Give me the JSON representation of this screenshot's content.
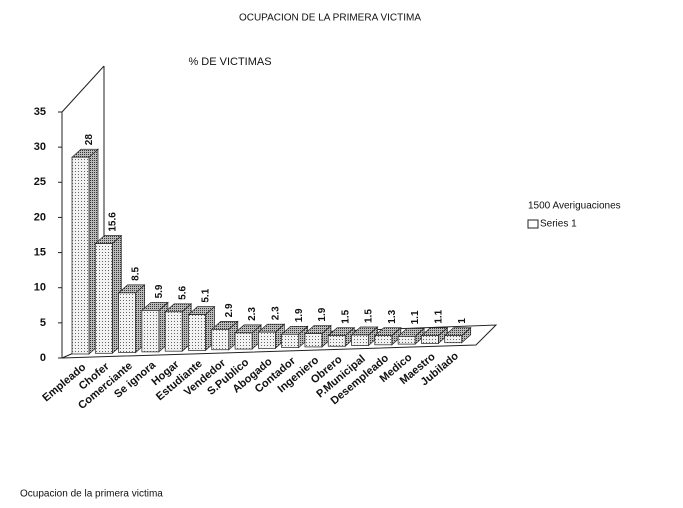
{
  "chart_data": {
    "type": "bar3d",
    "title": "OCUPACION DE LA PRIMERA VICTIMA",
    "subtitle": "% DE VICTIMAS",
    "legend_title": "1500 Averiguaciones",
    "footer": "Ocupacion de la primera victima",
    "categories": [
      "Empleado",
      "Chofer",
      "Comerciante",
      "Se ignora",
      "Hogar",
      "Estudiante",
      "Vendedor",
      "S.Publico",
      "Abogado",
      "Contador",
      "Ingeniero",
      "Obrero",
      "P.Municipal",
      "Desempleado",
      "Medico",
      "Maestro",
      "Jubilado"
    ],
    "series": [
      {
        "name": "Series 1",
        "color": "#d8d8d8",
        "values": [
          28,
          15.6,
          8.5,
          5.9,
          5.6,
          5.1,
          2.9,
          2.3,
          2.3,
          1.9,
          1.9,
          1.5,
          1.5,
          1.3,
          1.1,
          1.1,
          1
        ]
      }
    ],
    "ylim": [
      0,
      35
    ],
    "yticks": [
      0,
      5,
      10,
      15,
      20,
      25,
      30,
      35
    ]
  }
}
